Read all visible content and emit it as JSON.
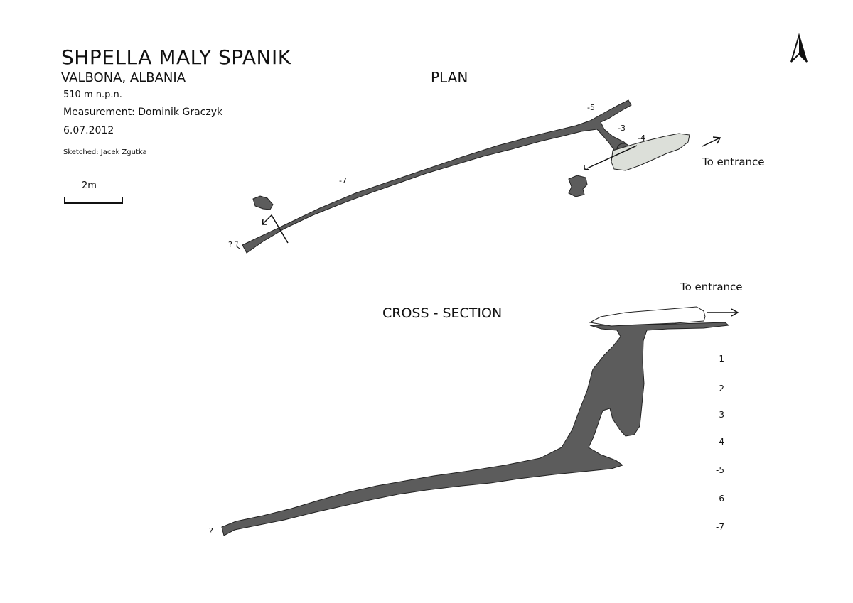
{
  "header": {
    "title": "SHPELLA MALY SPANIK",
    "location": "VALBONA, ALBANIA",
    "elevation": "510 m n.p.n.",
    "measurement": "Measurement:  Dominik Graczyk",
    "date": "6.07.2012",
    "sketched": "Sketched:  Jacek Zgutka"
  },
  "scale_bar": {
    "label": "2m"
  },
  "plan": {
    "heading": "PLAN",
    "entrance_label": "To entrance",
    "depth_marks": [
      "-7",
      "-5",
      "-3",
      "-4"
    ],
    "unknown_mark": "?"
  },
  "cross_section": {
    "heading": "CROSS - SECTION",
    "entrance_label": "To entrance",
    "depth_scale": [
      "-1",
      "-2",
      "-3",
      "-4",
      "-5",
      "-6",
      "-7"
    ],
    "unknown_mark": "?"
  },
  "colors": {
    "passage_fill": "#5c5c5c",
    "passage_outline": "#222222",
    "entrance_zone_fill": "#dcdfd9",
    "line": "#111111"
  },
  "icons": {
    "north_arrow": "north-arrow-icon"
  }
}
